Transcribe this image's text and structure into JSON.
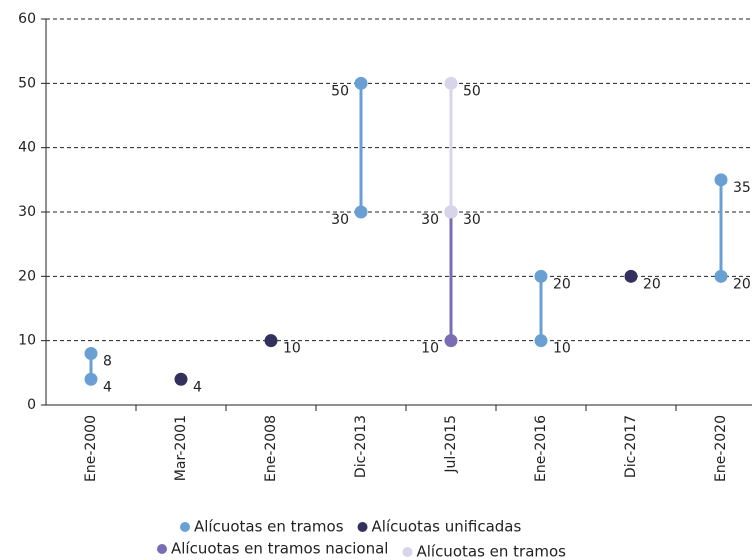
{
  "chart_data": {
    "type": "dumbbell",
    "categories": [
      "Ene-2000",
      "Mar-2001",
      "Ene-2008",
      "Dic-2013",
      "Jul-2015",
      "Ene-2016",
      "Dic-2017",
      "Ene-2020"
    ],
    "series": [
      {
        "name": "Alícuotas en tramos",
        "color": "#6a9fd4",
        "low": [
          4,
          null,
          null,
          30,
          null,
          10,
          null,
          20
        ],
        "high": [
          8,
          null,
          null,
          50,
          null,
          20,
          null,
          35
        ]
      },
      {
        "name": "Alícuotas unificadas",
        "color": "#33305e",
        "values": [
          null,
          4,
          10,
          null,
          null,
          null,
          20,
          null
        ]
      },
      {
        "name": "Alícuotas en tramos nacional",
        "color": "#7b6db5",
        "low": [
          null,
          null,
          null,
          null,
          10,
          null,
          null,
          null
        ],
        "high": [
          null,
          null,
          null,
          null,
          30,
          null,
          null,
          null
        ]
      },
      {
        "name": "Alícuotas en tramos",
        "color": "#d8d4ea",
        "low": [
          null,
          null,
          null,
          null,
          30,
          null,
          null,
          null
        ],
        "high": [
          null,
          null,
          null,
          null,
          50,
          null,
          null,
          null
        ]
      }
    ],
    "ylim": [
      0,
      60
    ],
    "yticks": [
      0,
      10,
      20,
      30,
      40,
      50,
      60
    ],
    "grid": true,
    "legend": "bottom"
  }
}
